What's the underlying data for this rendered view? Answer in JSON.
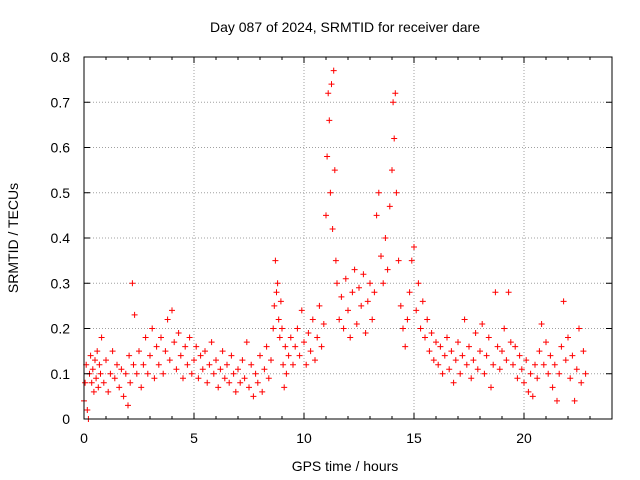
{
  "chart_data": {
    "type": "scatter",
    "title": "Day 087 of 2024, SRMTID for receiver dare",
    "xlabel": "GPS time / hours",
    "ylabel": "SRMTID / TECUs",
    "xlim": [
      0,
      24
    ],
    "ylim": [
      0,
      0.8
    ],
    "xticks": [
      0,
      5,
      10,
      15,
      20
    ],
    "yticks": [
      0,
      0.1,
      0.2,
      0.3,
      0.4,
      0.5,
      0.6,
      0.7,
      0.8
    ],
    "xtick_labels": [
      "0",
      "5",
      "10",
      "15",
      "20"
    ],
    "ytick_labels": [
      "0",
      "0.1",
      "0.2",
      "0.3",
      "0.4",
      "0.5",
      "0.6",
      "0.7",
      "0.8"
    ],
    "grid": true,
    "marker": "+",
    "color": "#ff0000",
    "series": [
      {
        "name": "dare",
        "points": [
          [
            0.0,
            0.04
          ],
          [
            0.05,
            0.08
          ],
          [
            0.1,
            0.12
          ],
          [
            0.15,
            0.02
          ],
          [
            0.2,
            0.0
          ],
          [
            0.25,
            0.1
          ],
          [
            0.3,
            0.14
          ],
          [
            0.35,
            0.08
          ],
          [
            0.4,
            0.11
          ],
          [
            0.45,
            0.06
          ],
          [
            0.5,
            0.13
          ],
          [
            0.55,
            0.09
          ],
          [
            0.6,
            0.15
          ],
          [
            0.65,
            0.07
          ],
          [
            0.7,
            0.12
          ],
          [
            0.75,
            0.1
          ],
          [
            0.8,
            0.18
          ],
          [
            0.9,
            0.08
          ],
          [
            1.0,
            0.13
          ],
          [
            1.1,
            0.06
          ],
          [
            1.2,
            0.1
          ],
          [
            1.3,
            0.15
          ],
          [
            1.4,
            0.09
          ],
          [
            1.5,
            0.12
          ],
          [
            1.6,
            0.07
          ],
          [
            1.7,
            0.11
          ],
          [
            1.8,
            0.05
          ],
          [
            1.9,
            0.1
          ],
          [
            2.0,
            0.03
          ],
          [
            2.05,
            0.14
          ],
          [
            2.1,
            0.08
          ],
          [
            2.2,
            0.3
          ],
          [
            2.25,
            0.12
          ],
          [
            2.3,
            0.23
          ],
          [
            2.4,
            0.1
          ],
          [
            2.5,
            0.15
          ],
          [
            2.6,
            0.07
          ],
          [
            2.7,
            0.12
          ],
          [
            2.8,
            0.18
          ],
          [
            2.9,
            0.1
          ],
          [
            3.0,
            0.14
          ],
          [
            3.1,
            0.2
          ],
          [
            3.2,
            0.09
          ],
          [
            3.3,
            0.16
          ],
          [
            3.4,
            0.12
          ],
          [
            3.5,
            0.18
          ],
          [
            3.6,
            0.1
          ],
          [
            3.7,
            0.15
          ],
          [
            3.8,
            0.22
          ],
          [
            3.9,
            0.13
          ],
          [
            4.0,
            0.24
          ],
          [
            4.1,
            0.17
          ],
          [
            4.2,
            0.11
          ],
          [
            4.3,
            0.19
          ],
          [
            4.4,
            0.14
          ],
          [
            4.5,
            0.09
          ],
          [
            4.6,
            0.16
          ],
          [
            4.7,
            0.12
          ],
          [
            4.8,
            0.18
          ],
          [
            4.9,
            0.1
          ],
          [
            5.0,
            0.13
          ],
          [
            5.1,
            0.16
          ],
          [
            5.2,
            0.09
          ],
          [
            5.3,
            0.14
          ],
          [
            5.4,
            0.11
          ],
          [
            5.5,
            0.15
          ],
          [
            5.6,
            0.08
          ],
          [
            5.7,
            0.12
          ],
          [
            5.8,
            0.17
          ],
          [
            5.9,
            0.1
          ],
          [
            6.0,
            0.13
          ],
          [
            6.1,
            0.07
          ],
          [
            6.2,
            0.11
          ],
          [
            6.3,
            0.15
          ],
          [
            6.4,
            0.09
          ],
          [
            6.5,
            0.12
          ],
          [
            6.6,
            0.08
          ],
          [
            6.7,
            0.14
          ],
          [
            6.8,
            0.1
          ],
          [
            6.9,
            0.06
          ],
          [
            7.0,
            0.11
          ],
          [
            7.1,
            0.08
          ],
          [
            7.2,
            0.13
          ],
          [
            7.3,
            0.09
          ],
          [
            7.4,
            0.17
          ],
          [
            7.5,
            0.07
          ],
          [
            7.6,
            0.12
          ],
          [
            7.7,
            0.05
          ],
          [
            7.8,
            0.1
          ],
          [
            7.9,
            0.08
          ],
          [
            8.0,
            0.14
          ],
          [
            8.1,
            0.06
          ],
          [
            8.2,
            0.11
          ],
          [
            8.3,
            0.16
          ],
          [
            8.4,
            0.09
          ],
          [
            8.5,
            0.13
          ],
          [
            8.6,
            0.2
          ],
          [
            8.65,
            0.25
          ],
          [
            8.7,
            0.35
          ],
          [
            8.75,
            0.28
          ],
          [
            8.8,
            0.3
          ],
          [
            8.85,
            0.22
          ],
          [
            8.9,
            0.18
          ],
          [
            8.95,
            0.26
          ],
          [
            9.0,
            0.2
          ],
          [
            9.05,
            0.12
          ],
          [
            9.1,
            0.07
          ],
          [
            9.15,
            0.16
          ],
          [
            9.2,
            0.1
          ],
          [
            9.3,
            0.14
          ],
          [
            9.4,
            0.18
          ],
          [
            9.5,
            0.12
          ],
          [
            9.6,
            0.16
          ],
          [
            9.7,
            0.2
          ],
          [
            9.8,
            0.14
          ],
          [
            9.9,
            0.24
          ],
          [
            10.0,
            0.17
          ],
          [
            10.1,
            0.12
          ],
          [
            10.2,
            0.19
          ],
          [
            10.3,
            0.15
          ],
          [
            10.4,
            0.22
          ],
          [
            10.5,
            0.13
          ],
          [
            10.6,
            0.18
          ],
          [
            10.7,
            0.25
          ],
          [
            10.8,
            0.16
          ],
          [
            10.9,
            0.21
          ],
          [
            11.0,
            0.45
          ],
          [
            11.05,
            0.58
          ],
          [
            11.1,
            0.72
          ],
          [
            11.15,
            0.66
          ],
          [
            11.2,
            0.5
          ],
          [
            11.25,
            0.74
          ],
          [
            11.3,
            0.42
          ],
          [
            11.35,
            0.77
          ],
          [
            11.4,
            0.55
          ],
          [
            11.45,
            0.35
          ],
          [
            11.5,
            0.3
          ],
          [
            11.6,
            0.22
          ],
          [
            11.7,
            0.27
          ],
          [
            11.8,
            0.2
          ],
          [
            11.9,
            0.31
          ],
          [
            12.0,
            0.24
          ],
          [
            12.1,
            0.18
          ],
          [
            12.2,
            0.28
          ],
          [
            12.3,
            0.33
          ],
          [
            12.4,
            0.21
          ],
          [
            12.5,
            0.29
          ],
          [
            12.6,
            0.25
          ],
          [
            12.7,
            0.32
          ],
          [
            12.8,
            0.19
          ],
          [
            12.9,
            0.26
          ],
          [
            13.0,
            0.3
          ],
          [
            13.1,
            0.22
          ],
          [
            13.2,
            0.28
          ],
          [
            13.3,
            0.45
          ],
          [
            13.4,
            0.5
          ],
          [
            13.5,
            0.36
          ],
          [
            13.6,
            0.3
          ],
          [
            13.7,
            0.4
          ],
          [
            13.8,
            0.33
          ],
          [
            13.9,
            0.47
          ],
          [
            14.0,
            0.55
          ],
          [
            14.05,
            0.7
          ],
          [
            14.1,
            0.62
          ],
          [
            14.15,
            0.72
          ],
          [
            14.2,
            0.5
          ],
          [
            14.3,
            0.35
          ],
          [
            14.4,
            0.25
          ],
          [
            14.5,
            0.2
          ],
          [
            14.6,
            0.16
          ],
          [
            14.7,
            0.22
          ],
          [
            14.8,
            0.28
          ],
          [
            14.9,
            0.35
          ],
          [
            15.0,
            0.38
          ],
          [
            15.1,
            0.24
          ],
          [
            15.2,
            0.3
          ],
          [
            15.3,
            0.2
          ],
          [
            15.4,
            0.26
          ],
          [
            15.5,
            0.18
          ],
          [
            15.6,
            0.22
          ],
          [
            15.7,
            0.15
          ],
          [
            15.8,
            0.19
          ],
          [
            15.9,
            0.13
          ],
          [
            16.0,
            0.17
          ],
          [
            16.1,
            0.12
          ],
          [
            16.2,
            0.16
          ],
          [
            16.3,
            0.1
          ],
          [
            16.4,
            0.14
          ],
          [
            16.5,
            0.18
          ],
          [
            16.6,
            0.11
          ],
          [
            16.7,
            0.15
          ],
          [
            16.8,
            0.08
          ],
          [
            16.9,
            0.13
          ],
          [
            17.0,
            0.17
          ],
          [
            17.1,
            0.1
          ],
          [
            17.2,
            0.14
          ],
          [
            17.3,
            0.22
          ],
          [
            17.4,
            0.12
          ],
          [
            17.5,
            0.16
          ],
          [
            17.6,
            0.09
          ],
          [
            17.7,
            0.13
          ],
          [
            17.8,
            0.19
          ],
          [
            17.9,
            0.11
          ],
          [
            18.0,
            0.15
          ],
          [
            18.1,
            0.21
          ],
          [
            18.2,
            0.1
          ],
          [
            18.3,
            0.14
          ],
          [
            18.4,
            0.18
          ],
          [
            18.5,
            0.07
          ],
          [
            18.6,
            0.12
          ],
          [
            18.7,
            0.28
          ],
          [
            18.8,
            0.16
          ],
          [
            18.9,
            0.11
          ],
          [
            19.0,
            0.15
          ],
          [
            19.1,
            0.2
          ],
          [
            19.2,
            0.13
          ],
          [
            19.3,
            0.28
          ],
          [
            19.4,
            0.17
          ],
          [
            19.5,
            0.12
          ],
          [
            19.6,
            0.16
          ],
          [
            19.7,
            0.09
          ],
          [
            19.8,
            0.14
          ],
          [
            19.9,
            0.11
          ],
          [
            20.0,
            0.08
          ],
          [
            20.1,
            0.13
          ],
          [
            20.2,
            0.06
          ],
          [
            20.3,
            0.1
          ],
          [
            20.4,
            0.05
          ],
          [
            20.5,
            0.12
          ],
          [
            20.6,
            0.09
          ],
          [
            20.7,
            0.15
          ],
          [
            20.8,
            0.21
          ],
          [
            20.9,
            0.12
          ],
          [
            21.0,
            0.17
          ],
          [
            21.1,
            0.1
          ],
          [
            21.2,
            0.14
          ],
          [
            21.3,
            0.07
          ],
          [
            21.4,
            0.12
          ],
          [
            21.5,
            0.04
          ],
          [
            21.6,
            0.1
          ],
          [
            21.7,
            0.16
          ],
          [
            21.8,
            0.26
          ],
          [
            21.9,
            0.13
          ],
          [
            22.0,
            0.18
          ],
          [
            22.1,
            0.09
          ],
          [
            22.2,
            0.14
          ],
          [
            22.3,
            0.04
          ],
          [
            22.4,
            0.11
          ],
          [
            22.5,
            0.2
          ],
          [
            22.6,
            0.08
          ],
          [
            22.7,
            0.15
          ],
          [
            22.8,
            0.1
          ]
        ]
      }
    ]
  }
}
